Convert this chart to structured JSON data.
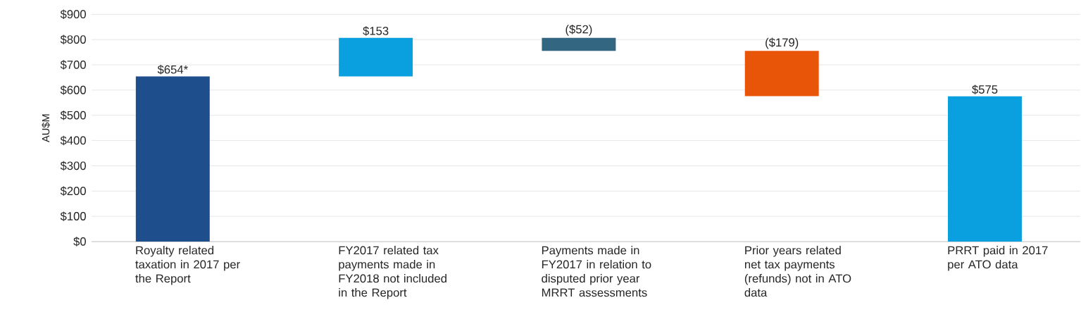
{
  "chart_data": {
    "type": "bar",
    "ylabel": "AU$M",
    "categories": [
      "Royalty related taxation in 2017 per the Report",
      "FY2017 related tax payments made in FY2018 not included in the Report",
      "Payments made in FY2017 in relation to disputed prior year MRRT assessments",
      "Prior years related net tax payments (refunds) not in ATO data",
      "PRRT paid in 2017 per ATO data"
    ],
    "values": [
      654,
      153,
      -52,
      -179,
      575
    ],
    "base": [
      0,
      654,
      807,
      755,
      0
    ],
    "colors": [
      "#1f4e8c",
      "#0aa0e0",
      "#336680",
      "#e85508",
      "#0aa0e0"
    ],
    "value_labels": [
      "$654*",
      "$153",
      "($52)",
      "($179)",
      "$575"
    ],
    "ylim": [
      0,
      900
    ],
    "yticks": [
      {
        "value": 0,
        "label": "$0"
      },
      {
        "value": 100,
        "label": "$100"
      },
      {
        "value": 200,
        "label": "$200"
      },
      {
        "value": 300,
        "label": "$300"
      },
      {
        "value": 400,
        "label": "$400"
      },
      {
        "value": 500,
        "label": "$500"
      },
      {
        "value": 600,
        "label": "$600"
      },
      {
        "value": 700,
        "label": "$700"
      },
      {
        "value": 800,
        "label": "$800"
      },
      {
        "value": 900,
        "label": "$900"
      }
    ],
    "grid": "y"
  }
}
